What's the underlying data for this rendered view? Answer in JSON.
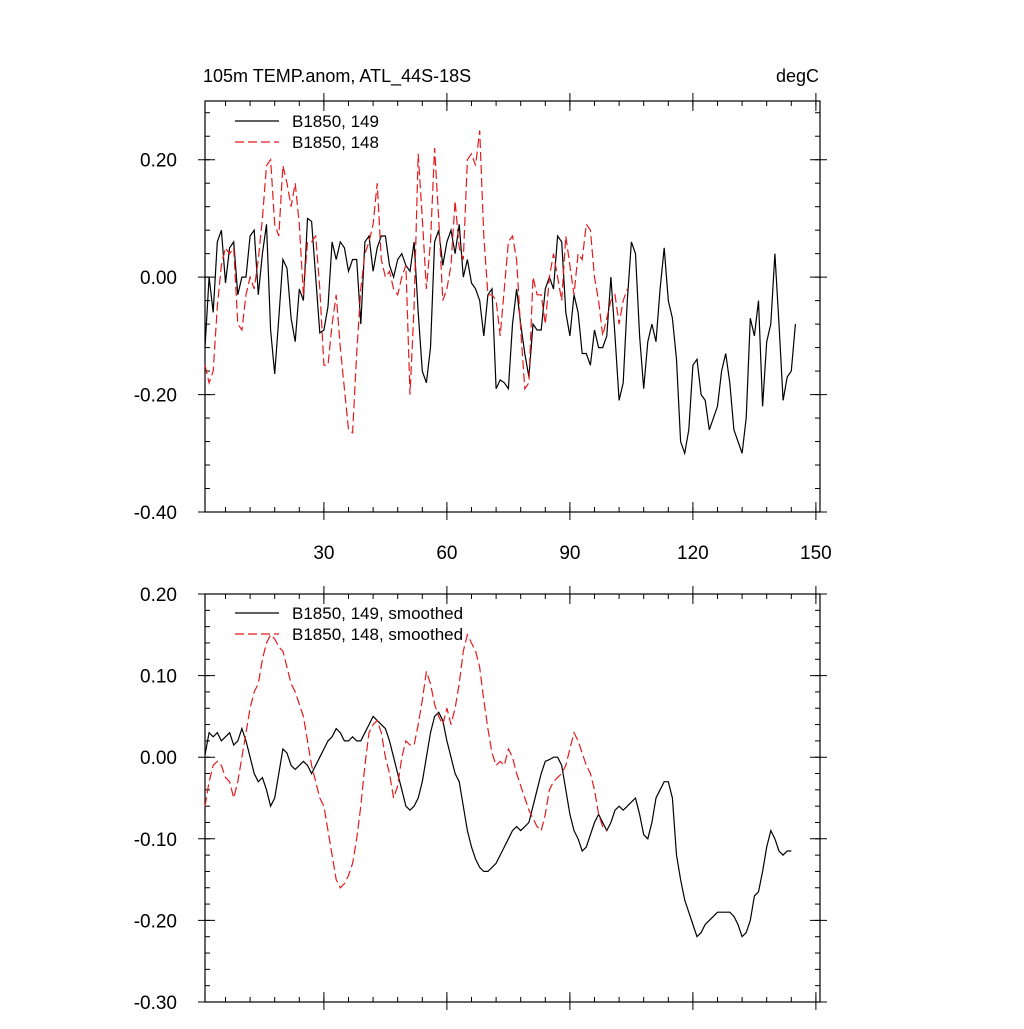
{
  "chart_data": [
    {
      "type": "line",
      "title": "105m TEMP.anom, ATL_44S-18S",
      "units": "degC",
      "xlim": [
        1,
        151
      ],
      "ylim": [
        -0.4,
        0.3
      ],
      "xticks": [
        30,
        60,
        90,
        120,
        150
      ],
      "xtick_labels": [
        "30",
        "60",
        "90",
        "120",
        "150"
      ],
      "yticks": [
        -0.4,
        -0.2,
        0.0,
        0.2
      ],
      "ytick_labels": [
        "-0.40",
        "-0.20",
        "0.00",
        "0.20"
      ],
      "legend_position": "top-left",
      "series": [
        {
          "name": "B1850, 149",
          "color": "#000000",
          "dash": "solid",
          "y": [
            -0.12,
            0.0,
            -0.06,
            0.06,
            0.08,
            -0.01,
            0.05,
            0.06,
            -0.03,
            0.0,
            0.0,
            0.07,
            0.08,
            -0.03,
            0.04,
            0.09,
            -0.09,
            -0.165,
            -0.07,
            0.03,
            0.015,
            -0.07,
            -0.11,
            -0.02,
            -0.04,
            0.1,
            0.095,
            0.0,
            -0.095,
            -0.09,
            -0.05,
            0.06,
            0.03,
            0.06,
            0.05,
            0.01,
            0.03,
            0.03,
            -0.08,
            0.06,
            0.07,
            0.01,
            0.05,
            0.07,
            0.07,
            0.02,
            0.0,
            0.03,
            0.04,
            0.02,
            0.01,
            0.06,
            -0.06,
            -0.16,
            -0.18,
            -0.12,
            0.06,
            0.08,
            0.02,
            0.06,
            0.08,
            0.04,
            0.09,
            0.0,
            0.03,
            -0.01,
            -0.02,
            -0.04,
            -0.1,
            -0.03,
            -0.02,
            -0.19,
            -0.175,
            -0.18,
            -0.19,
            -0.08,
            -0.02,
            -0.08,
            -0.13,
            -0.17,
            -0.08,
            -0.09,
            -0.09,
            -0.02,
            0.0,
            -0.02,
            0.07,
            0.06,
            -0.06,
            -0.1,
            -0.03,
            -0.06,
            -0.13,
            -0.13,
            -0.15,
            -0.09,
            -0.12,
            -0.12,
            -0.1,
            0.0,
            -0.1,
            -0.21,
            -0.18,
            -0.04,
            0.06,
            0.04,
            -0.1,
            -0.19,
            -0.11,
            -0.08,
            -0.11,
            -0.02,
            0.05,
            -0.04,
            -0.07,
            -0.14,
            -0.28,
            -0.3,
            -0.26,
            -0.15,
            -0.14,
            -0.2,
            -0.21,
            -0.26,
            -0.24,
            -0.22,
            -0.16,
            -0.13,
            -0.18,
            -0.26,
            -0.28,
            -0.3,
            -0.24,
            -0.07,
            -0.1,
            -0.04,
            -0.22,
            -0.11,
            -0.08,
            0.04,
            -0.08,
            -0.21,
            -0.17,
            -0.16,
            -0.08
          ]
        },
        {
          "name": "B1850, 148",
          "color": "#e41a1c",
          "dash": "dashed",
          "y": [
            -0.15,
            -0.18,
            -0.16,
            -0.05,
            0.02,
            0.05,
            0.04,
            0.05,
            -0.08,
            -0.09,
            -0.03,
            0.0,
            -0.02,
            0.03,
            0.1,
            0.19,
            0.2,
            0.09,
            0.07,
            0.19,
            0.16,
            0.12,
            0.16,
            0.09,
            -0.03,
            0.06,
            0.06,
            0.07,
            -0.02,
            -0.15,
            -0.15,
            -0.08,
            -0.03,
            -0.12,
            -0.19,
            -0.26,
            -0.265,
            -0.13,
            -0.02,
            0.04,
            0.06,
            0.09,
            0.16,
            0.03,
            0.0,
            0.01,
            -0.02,
            -0.03,
            0.0,
            0.02,
            -0.2,
            -0.05,
            0.21,
            0.1,
            -0.02,
            0.06,
            0.22,
            0.1,
            -0.04,
            -0.02,
            0.02,
            0.13,
            0.05,
            0.03,
            0.2,
            0.21,
            0.19,
            0.25,
            0.07,
            -0.03,
            -0.03,
            -0.04,
            -0.1,
            -0.02,
            0.06,
            0.07,
            0.03,
            -0.09,
            -0.19,
            -0.18,
            0.0,
            -0.03,
            -0.03,
            -0.08,
            0.0,
            0.04,
            0.0,
            -0.04,
            0.07,
            0.02,
            -0.03,
            0.04,
            0.03,
            0.09,
            0.08,
            0.0,
            -0.04,
            -0.1,
            -0.07,
            -0.04,
            -0.03,
            -0.08,
            -0.04,
            -0.02
          ]
        }
      ]
    },
    {
      "type": "line",
      "xlim": [
        1,
        151
      ],
      "ylim": [
        -0.3,
        0.2
      ],
      "xticks": [
        30,
        60,
        90,
        120,
        150
      ],
      "yticks": [
        -0.3,
        -0.2,
        -0.1,
        0.0,
        0.1,
        0.2
      ],
      "ytick_labels": [
        "-0.30",
        "-0.20",
        "-0.10",
        "0.00",
        "0.10",
        "0.20"
      ],
      "legend_position": "top-left",
      "series": [
        {
          "name": "B1850, 149, smoothed",
          "color": "#000000",
          "dash": "solid",
          "y": [
            0.003,
            0.03,
            0.025,
            0.03,
            0.02,
            0.025,
            0.03,
            0.015,
            0.02,
            0.035,
            0.02,
            0.0,
            -0.02,
            -0.03,
            -0.025,
            -0.04,
            -0.06,
            -0.05,
            -0.02,
            0.01,
            0.005,
            -0.01,
            -0.015,
            -0.01,
            -0.005,
            -0.01,
            -0.02,
            -0.01,
            0.0,
            0.01,
            0.02,
            0.025,
            0.035,
            0.03,
            0.02,
            0.02,
            0.025,
            0.02,
            0.02,
            0.03,
            0.04,
            0.05,
            0.045,
            0.04,
            0.035,
            0.02,
            0.0,
            -0.02,
            -0.04,
            -0.06,
            -0.065,
            -0.06,
            -0.05,
            -0.03,
            0.0,
            0.03,
            0.05,
            0.055,
            0.045,
            0.02,
            0.0,
            -0.02,
            -0.03,
            -0.06,
            -0.09,
            -0.11,
            -0.125,
            -0.135,
            -0.14,
            -0.14,
            -0.135,
            -0.13,
            -0.12,
            -0.11,
            -0.1,
            -0.09,
            -0.085,
            -0.09,
            -0.085,
            -0.08,
            -0.06,
            -0.04,
            -0.02,
            -0.005,
            -0.003,
            0.0,
            0.0,
            -0.01,
            -0.04,
            -0.07,
            -0.09,
            -0.1,
            -0.115,
            -0.11,
            -0.095,
            -0.08,
            -0.07,
            -0.08,
            -0.09,
            -0.08,
            -0.065,
            -0.06,
            -0.065,
            -0.06,
            -0.055,
            -0.05,
            -0.07,
            -0.095,
            -0.1,
            -0.08,
            -0.05,
            -0.04,
            -0.03,
            -0.03,
            -0.05,
            -0.12,
            -0.15,
            -0.175,
            -0.19,
            -0.205,
            -0.22,
            -0.215,
            -0.205,
            -0.2,
            -0.195,
            -0.19,
            -0.19,
            -0.19,
            -0.19,
            -0.195,
            -0.205,
            -0.22,
            -0.215,
            -0.2,
            -0.17,
            -0.165,
            -0.14,
            -0.11,
            -0.09,
            -0.1,
            -0.115,
            -0.12,
            -0.115,
            -0.115
          ]
        },
        {
          "name": "B1850, 148, smoothed",
          "color": "#e41a1c",
          "dash": "dashed",
          "y": [
            -0.06,
            -0.03,
            -0.01,
            -0.005,
            -0.01,
            -0.025,
            -0.03,
            -0.05,
            -0.03,
            0.0,
            0.03,
            0.06,
            0.08,
            0.09,
            0.12,
            0.14,
            0.15,
            0.145,
            0.135,
            0.13,
            0.11,
            0.09,
            0.08,
            0.065,
            0.05,
            0.02,
            -0.01,
            -0.03,
            -0.05,
            -0.06,
            -0.09,
            -0.12,
            -0.15,
            -0.16,
            -0.155,
            -0.145,
            -0.13,
            -0.1,
            -0.06,
            -0.01,
            0.03,
            0.04,
            0.045,
            0.03,
            0.0,
            -0.02,
            -0.05,
            -0.035,
            0.0,
            0.02,
            0.015,
            0.015,
            0.04,
            0.07,
            0.105,
            0.09,
            0.065,
            0.05,
            0.04,
            0.06,
            0.04,
            0.06,
            0.09,
            0.13,
            0.15,
            0.14,
            0.13,
            0.11,
            0.07,
            0.035,
            0.005,
            -0.01,
            -0.005,
            -0.01,
            0.01,
            0.0,
            -0.02,
            -0.035,
            -0.05,
            -0.065,
            -0.075,
            -0.085,
            -0.09,
            -0.07,
            -0.04,
            -0.03,
            -0.025,
            -0.02,
            -0.01,
            0.01,
            0.03,
            0.02,
            0.005,
            -0.01,
            -0.02,
            -0.04,
            -0.07,
            -0.085,
            -0.09
          ]
        }
      ]
    }
  ]
}
